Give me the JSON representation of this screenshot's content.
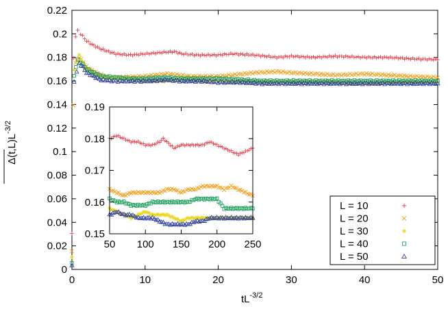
{
  "chart_data": [
    {
      "type": "scatter",
      "xlabel": "tL",
      "xlabel_sup": "-3/2",
      "ylabel_main": "Δ(t,L)",
      "ylabel_tail": "L",
      "ylabel_sup": "-3/2",
      "xlim": [
        0,
        50
      ],
      "ylim": [
        0,
        0.22
      ],
      "xticks": [
        "0",
        "10",
        "20",
        "30",
        "40",
        "50"
      ],
      "yticks": [
        "0",
        "0.02",
        "0.04",
        "0.06",
        "0.08",
        "0.1",
        "0.12",
        "0.14",
        "0.16",
        "0.18",
        "0.2",
        "0.22"
      ],
      "grid": false,
      "legend_position": "bottom-right",
      "series": [
        {
          "name": "L = 10",
          "marker": "plus",
          "color": "#e8434f",
          "points": [
            [
              0,
              0.03
            ],
            [
              0.2,
              0.18
            ],
            [
              0.5,
              0.197
            ],
            [
              0.8,
              0.203
            ],
            [
              1.2,
              0.2
            ],
            [
              2,
              0.194
            ],
            [
              3,
              0.19
            ],
            [
              4,
              0.187
            ],
            [
              5,
              0.185
            ],
            [
              6,
              0.183
            ],
            [
              8,
              0.182
            ],
            [
              10,
              0.183
            ],
            [
              12,
              0.184
            ],
            [
              14,
              0.185
            ],
            [
              15,
              0.183
            ],
            [
              17,
              0.182
            ],
            [
              20,
              0.182
            ],
            [
              22,
              0.183
            ],
            [
              25,
              0.182
            ],
            [
              28,
              0.18
            ],
            [
              30,
              0.181
            ],
            [
              33,
              0.18
            ],
            [
              36,
              0.181
            ],
            [
              40,
              0.18
            ],
            [
              43,
              0.18
            ],
            [
              46,
              0.179
            ],
            [
              50,
              0.178
            ]
          ]
        },
        {
          "name": "L = 20",
          "marker": "x",
          "color": "#f0a020",
          "points": [
            [
              0,
              0.015
            ],
            [
              0.2,
              0.14
            ],
            [
              0.5,
              0.175
            ],
            [
              1,
              0.18
            ],
            [
              1.5,
              0.176
            ],
            [
              2,
              0.172
            ],
            [
              3,
              0.168
            ],
            [
              4,
              0.165
            ],
            [
              5,
              0.163
            ],
            [
              7,
              0.163
            ],
            [
              10,
              0.164
            ],
            [
              13,
              0.166
            ],
            [
              16,
              0.164
            ],
            [
              20,
              0.164
            ],
            [
              22,
              0.165
            ],
            [
              25,
              0.167
            ],
            [
              28,
              0.168
            ],
            [
              30,
              0.167
            ],
            [
              33,
              0.166
            ],
            [
              36,
              0.165
            ],
            [
              40,
              0.166
            ],
            [
              43,
              0.165
            ],
            [
              46,
              0.164
            ],
            [
              50,
              0.163
            ]
          ]
        },
        {
          "name": "L = 30",
          "marker": "star",
          "color": "#e8d820",
          "points": [
            [
              0,
              0.01
            ],
            [
              0.3,
              0.17
            ],
            [
              1,
              0.182
            ],
            [
              1.5,
              0.175
            ],
            [
              2,
              0.17
            ],
            [
              3,
              0.166
            ],
            [
              4,
              0.163
            ],
            [
              6,
              0.162
            ],
            [
              8,
              0.161
            ],
            [
              10,
              0.16
            ],
            [
              12,
              0.16
            ],
            [
              15,
              0.161
            ],
            [
              18,
              0.16
            ],
            [
              20,
              0.16
            ],
            [
              22,
              0.159
            ],
            [
              24,
              0.16
            ],
            [
              26,
              0.159
            ],
            [
              30,
              0.159
            ],
            [
              35,
              0.159
            ],
            [
              40,
              0.158
            ],
            [
              45,
              0.159
            ],
            [
              50,
              0.159
            ]
          ]
        },
        {
          "name": "L = 40",
          "marker": "square",
          "color": "#20a060",
          "points": [
            [
              0,
              0.005
            ],
            [
              0.3,
              0.165
            ],
            [
              0.8,
              0.178
            ],
            [
              1.5,
              0.174
            ],
            [
              2,
              0.17
            ],
            [
              3,
              0.167
            ],
            [
              4,
              0.164
            ],
            [
              6,
              0.163
            ],
            [
              8,
              0.162
            ],
            [
              10,
              0.162
            ],
            [
              13,
              0.163
            ],
            [
              15,
              0.162
            ],
            [
              18,
              0.162
            ],
            [
              20,
              0.162
            ],
            [
              23,
              0.161
            ],
            [
              26,
              0.16
            ],
            [
              30,
              0.16
            ],
            [
              35,
              0.16
            ],
            [
              40,
              0.16
            ],
            [
              45,
              0.16
            ],
            [
              50,
              0.16
            ]
          ]
        },
        {
          "name": "L = 50",
          "marker": "triangle",
          "color": "#3040a0",
          "points": [
            [
              0,
              0.003
            ],
            [
              0.3,
              0.16
            ],
            [
              1,
              0.175
            ],
            [
              1.5,
              0.172
            ],
            [
              2,
              0.167
            ],
            [
              3,
              0.164
            ],
            [
              4,
              0.161
            ],
            [
              6,
              0.16
            ],
            [
              8,
              0.16
            ],
            [
              10,
              0.16
            ],
            [
              13,
              0.161
            ],
            [
              15,
              0.16
            ],
            [
              18,
              0.16
            ],
            [
              20,
              0.159
            ],
            [
              23,
              0.159
            ],
            [
              26,
              0.158
            ],
            [
              30,
              0.158
            ],
            [
              35,
              0.158
            ],
            [
              40,
              0.158
            ],
            [
              45,
              0.158
            ],
            [
              50,
              0.158
            ]
          ]
        }
      ]
    },
    {
      "type": "scatter",
      "panel": "inset",
      "xlim": [
        50,
        250
      ],
      "ylim": [
        0.15,
        0.19
      ],
      "xticks": [
        "50",
        "100",
        "150",
        "200",
        "250"
      ],
      "yticks": [
        "0.15",
        "0.16",
        "0.17",
        "0.18",
        "0.19"
      ],
      "series": [
        {
          "name": "L = 10",
          "marker": "plus",
          "color": "#e8434f",
          "points": [
            [
              50,
              0.18
            ],
            [
              60,
              0.181
            ],
            [
              70,
              0.18
            ],
            [
              80,
              0.179
            ],
            [
              90,
              0.179
            ],
            [
              100,
              0.178
            ],
            [
              110,
              0.178
            ],
            [
              120,
              0.179
            ],
            [
              125,
              0.18
            ],
            [
              130,
              0.179
            ],
            [
              140,
              0.177
            ],
            [
              150,
              0.178
            ],
            [
              160,
              0.178
            ],
            [
              170,
              0.178
            ],
            [
              180,
              0.178
            ],
            [
              190,
              0.179
            ],
            [
              200,
              0.178
            ],
            [
              210,
              0.177
            ],
            [
              220,
              0.176
            ],
            [
              230,
              0.175
            ],
            [
              240,
              0.176
            ],
            [
              250,
              0.177
            ]
          ]
        },
        {
          "name": "L = 20",
          "marker": "x",
          "color": "#f0a020",
          "points": [
            [
              50,
              0.164
            ],
            [
              60,
              0.163
            ],
            [
              70,
              0.162
            ],
            [
              80,
              0.163
            ],
            [
              90,
              0.163
            ],
            [
              100,
              0.163
            ],
            [
              110,
              0.163
            ],
            [
              120,
              0.163
            ],
            [
              130,
              0.164
            ],
            [
              140,
              0.164
            ],
            [
              150,
              0.163
            ],
            [
              160,
              0.164
            ],
            [
              170,
              0.164
            ],
            [
              180,
              0.165
            ],
            [
              190,
              0.165
            ],
            [
              200,
              0.165
            ],
            [
              210,
              0.164
            ],
            [
              220,
              0.165
            ],
            [
              230,
              0.164
            ],
            [
              240,
              0.163
            ],
            [
              250,
              0.162
            ]
          ]
        },
        {
          "name": "L = 30",
          "marker": "star",
          "color": "#e8d820",
          "points": [
            [
              50,
              0.158
            ],
            [
              60,
              0.157
            ],
            [
              70,
              0.156
            ],
            [
              80,
              0.155
            ],
            [
              90,
              0.156
            ],
            [
              100,
              0.157
            ],
            [
              110,
              0.156
            ],
            [
              120,
              0.156
            ],
            [
              130,
              0.156
            ],
            [
              140,
              0.155
            ],
            [
              150,
              0.154
            ],
            [
              160,
              0.155
            ],
            [
              170,
              0.155
            ],
            [
              180,
              0.155
            ],
            [
              190,
              0.155
            ],
            [
              200,
              0.155
            ],
            [
              210,
              0.155
            ],
            [
              220,
              0.155
            ],
            [
              230,
              0.155
            ],
            [
              240,
              0.155
            ],
            [
              250,
              0.155
            ]
          ]
        },
        {
          "name": "L = 40",
          "marker": "square",
          "color": "#20a060",
          "points": [
            [
              50,
              0.161
            ],
            [
              60,
              0.16
            ],
            [
              70,
              0.16
            ],
            [
              80,
              0.159
            ],
            [
              90,
              0.159
            ],
            [
              100,
              0.159
            ],
            [
              110,
              0.16
            ],
            [
              120,
              0.16
            ],
            [
              130,
              0.16
            ],
            [
              140,
              0.16
            ],
            [
              150,
              0.16
            ],
            [
              160,
              0.16
            ],
            [
              170,
              0.161
            ],
            [
              180,
              0.161
            ],
            [
              190,
              0.161
            ],
            [
              200,
              0.161
            ],
            [
              210,
              0.158
            ],
            [
              220,
              0.158
            ],
            [
              230,
              0.158
            ],
            [
              240,
              0.158
            ],
            [
              250,
              0.158
            ]
          ]
        },
        {
          "name": "L = 50",
          "marker": "triangle",
          "color": "#3040a0",
          "points": [
            [
              50,
              0.156
            ],
            [
              60,
              0.157
            ],
            [
              70,
              0.156
            ],
            [
              80,
              0.156
            ],
            [
              90,
              0.155
            ],
            [
              100,
              0.155
            ],
            [
              110,
              0.155
            ],
            [
              120,
              0.154
            ],
            [
              130,
              0.153
            ],
            [
              140,
              0.153
            ],
            [
              150,
              0.153
            ],
            [
              160,
              0.153
            ],
            [
              170,
              0.154
            ],
            [
              180,
              0.154
            ],
            [
              190,
              0.155
            ],
            [
              200,
              0.155
            ],
            [
              210,
              0.155
            ],
            [
              220,
              0.155
            ],
            [
              230,
              0.155
            ],
            [
              240,
              0.155
            ],
            [
              250,
              0.155
            ]
          ]
        }
      ]
    }
  ]
}
